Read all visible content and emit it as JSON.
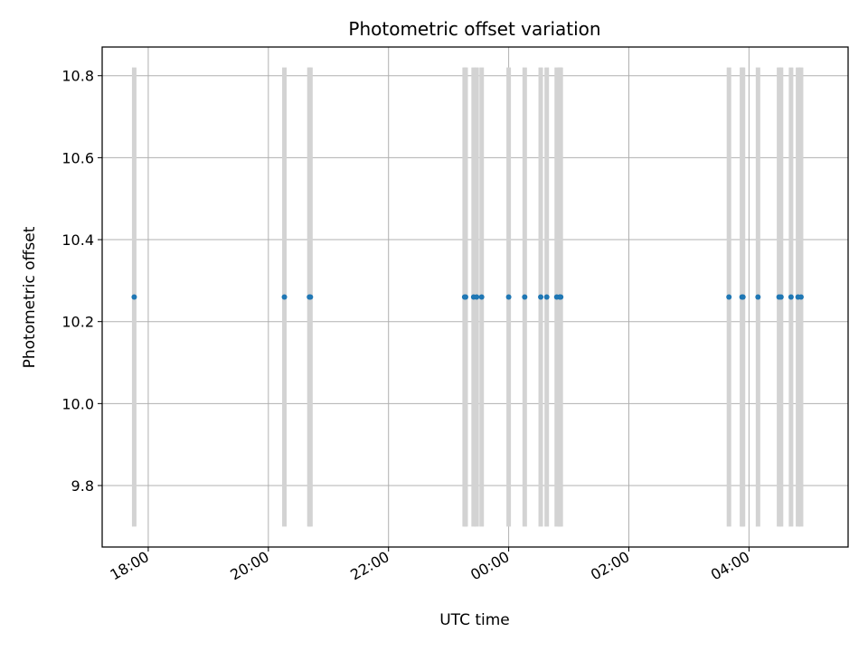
{
  "chart_data": {
    "type": "scatter",
    "title": "Photometric offset variation",
    "xlabel": "UTC time",
    "ylabel": "Photometric offset",
    "x_unit": "hours (UTC, continuing past midnight)",
    "xlim": [
      "17:14",
      "05:39"
    ],
    "ylim": [
      9.65,
      10.87
    ],
    "xticks": [
      "18:00",
      "20:00",
      "22:00",
      "00:00",
      "02:00",
      "04:00"
    ],
    "yticks": [
      "9.8",
      "10.0",
      "10.2",
      "10.4",
      "10.6",
      "10.8"
    ],
    "grid": true,
    "colors": {
      "points": "#1f77b4",
      "error_bars": "#d3d3d3",
      "grid": "#b0b0b0"
    },
    "series": [
      {
        "points": [
          {
            "x": "17:46",
            "y": 10.26,
            "ymin": 9.7,
            "ymax": 10.82
          },
          {
            "x": "20:16",
            "y": 10.26,
            "ymin": 9.7,
            "ymax": 10.82
          },
          {
            "x": "20:41",
            "y": 10.26,
            "ymin": 9.7,
            "ymax": 10.82
          },
          {
            "x": "20:42",
            "y": 10.26,
            "ymin": 9.7,
            "ymax": 10.82
          },
          {
            "x": "23:16",
            "y": 10.26,
            "ymin": 9.7,
            "ymax": 10.82
          },
          {
            "x": "23:17",
            "y": 10.26,
            "ymin": 9.7,
            "ymax": 10.82
          },
          {
            "x": "23:25",
            "y": 10.26,
            "ymin": 9.7,
            "ymax": 10.82
          },
          {
            "x": "23:28",
            "y": 10.26,
            "ymin": 9.7,
            "ymax": 10.82
          },
          {
            "x": "23:33",
            "y": 10.26,
            "ymin": 9.7,
            "ymax": 10.82
          },
          {
            "x": "00:00",
            "y": 10.26,
            "ymin": 9.7,
            "ymax": 10.82
          },
          {
            "x": "00:16",
            "y": 10.26,
            "ymin": 9.7,
            "ymax": 10.82
          },
          {
            "x": "00:32",
            "y": 10.26,
            "ymin": 9.7,
            "ymax": 10.82
          },
          {
            "x": "00:38",
            "y": 10.26,
            "ymin": 9.7,
            "ymax": 10.82
          },
          {
            "x": "00:48",
            "y": 10.26,
            "ymin": 9.7,
            "ymax": 10.82
          },
          {
            "x": "00:51",
            "y": 10.26,
            "ymin": 9.7,
            "ymax": 10.82
          },
          {
            "x": "00:52",
            "y": 10.26,
            "ymin": 9.7,
            "ymax": 10.82
          },
          {
            "x": "03:40",
            "y": 10.26,
            "ymin": 9.7,
            "ymax": 10.82
          },
          {
            "x": "03:53",
            "y": 10.26,
            "ymin": 9.7,
            "ymax": 10.82
          },
          {
            "x": "03:54",
            "y": 10.26,
            "ymin": 9.7,
            "ymax": 10.82
          },
          {
            "x": "04:09",
            "y": 10.26,
            "ymin": 9.7,
            "ymax": 10.82
          },
          {
            "x": "04:30",
            "y": 10.26,
            "ymin": 9.7,
            "ymax": 10.82
          },
          {
            "x": "04:32",
            "y": 10.26,
            "ymin": 9.7,
            "ymax": 10.82
          },
          {
            "x": "04:42",
            "y": 10.26,
            "ymin": 9.7,
            "ymax": 10.82
          },
          {
            "x": "04:49",
            "y": 10.26,
            "ymin": 9.7,
            "ymax": 10.82
          },
          {
            "x": "04:52",
            "y": 10.26,
            "ymin": 9.7,
            "ymax": 10.82
          }
        ]
      }
    ]
  }
}
